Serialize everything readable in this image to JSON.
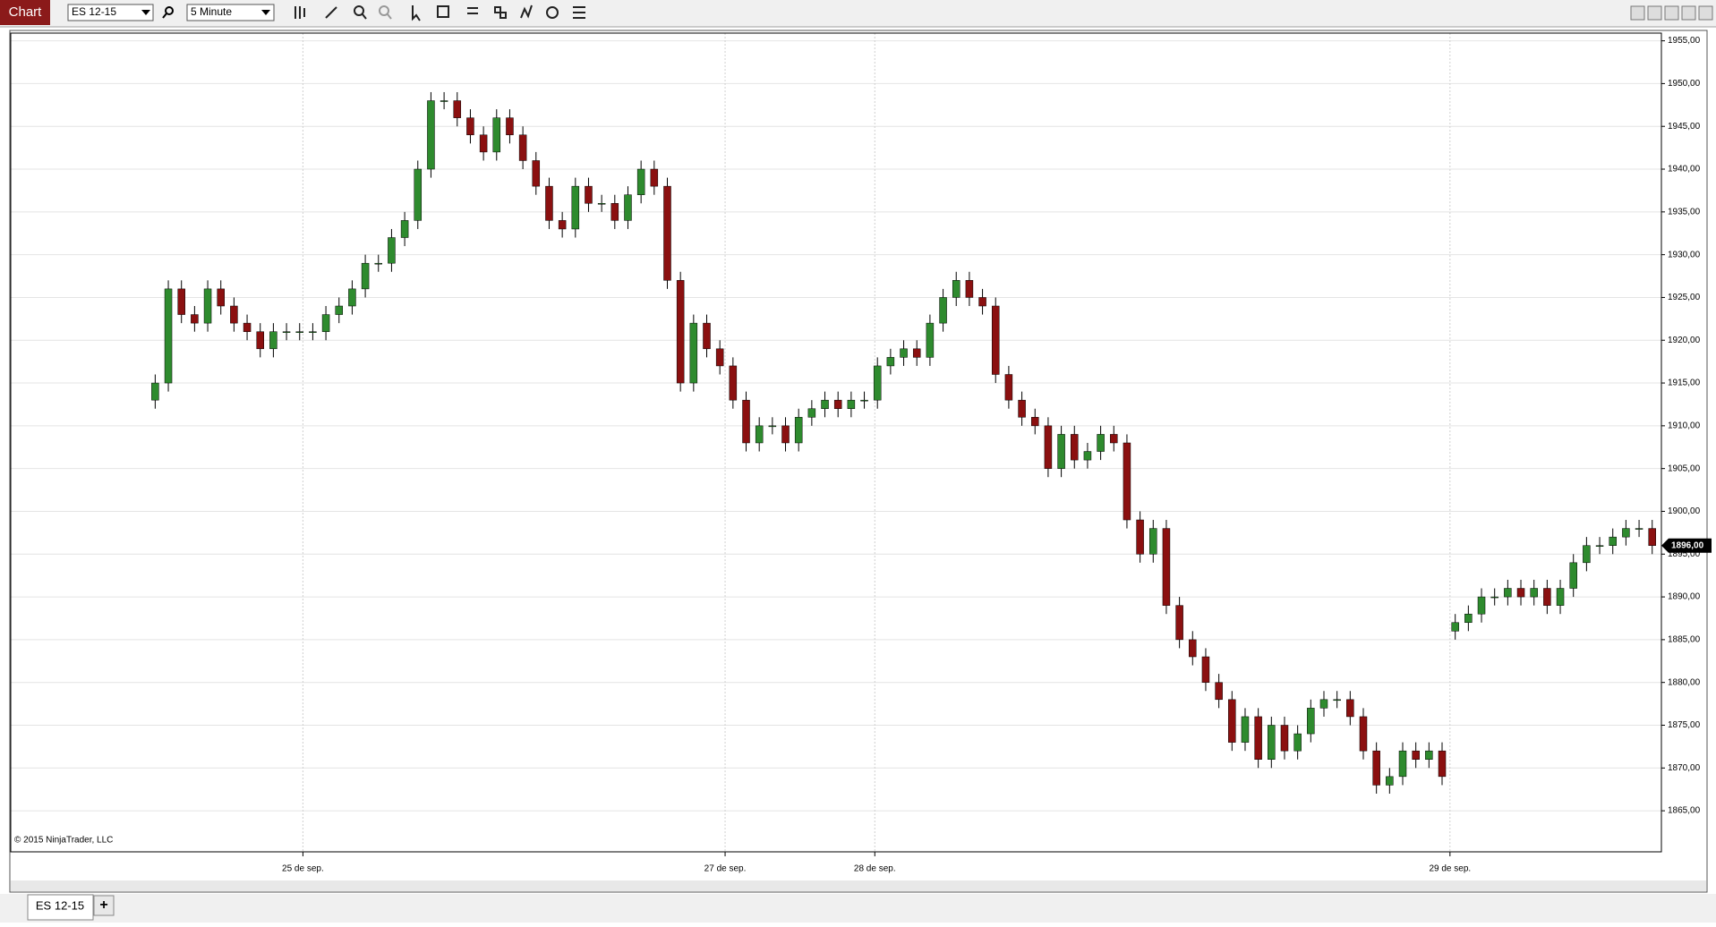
{
  "toolbar": {
    "chart_button": "Chart",
    "instrument": "ES 12-15",
    "interval": "5 Minute"
  },
  "tabs": {
    "active": "ES 12-15",
    "add": "+"
  },
  "chart_data": {
    "type": "candlestick",
    "copyright": "© 2015 NinjaTrader, LLC",
    "up_color": "#2e8b2e",
    "down_color": "#8b1010",
    "wick_color": "#000000",
    "grid": true,
    "open": [
      1913,
      1915,
      1926,
      1923,
      1922,
      1926,
      1924,
      1922,
      1921,
      1919,
      1921,
      1921,
      1921,
      1921,
      1923,
      1924,
      1926,
      1929,
      1929,
      1932,
      1934,
      1940,
      1948,
      1948,
      1946,
      1944,
      1942,
      1946,
      1944,
      1941,
      1938,
      1934,
      1933,
      1938,
      1936,
      1936,
      1934,
      1937,
      1940,
      1938,
      1927,
      1915,
      1922,
      1919,
      1917,
      1913,
      1908,
      1910,
      1910,
      1908,
      1911,
      1912,
      1913,
      1912,
      1913,
      1913,
      1917,
      1918,
      1919,
      1918,
      1922,
      1925,
      1927,
      1925,
      1924,
      1916,
      1913,
      1911,
      1910,
      1905,
      1909,
      1906,
      1907,
      1909,
      1908,
      1899,
      1895,
      1898,
      1889,
      1885,
      1883,
      1880,
      1878,
      1873,
      1876,
      1871,
      1875,
      1872,
      1874,
      1877,
      1878,
      1878,
      1876,
      1872,
      1868,
      1869,
      1872,
      1871,
      1872,
      1886,
      1887,
      1888,
      1890,
      1890,
      1891,
      1890,
      1891,
      1889,
      1891,
      1894,
      1896,
      1896,
      1897,
      1898,
      1898
    ],
    "high": [
      1916,
      1927,
      1927,
      1924,
      1927,
      1927,
      1925,
      1923,
      1922,
      1922,
      1922,
      1922,
      1922,
      1924,
      1925,
      1927,
      1930,
      1930,
      1933,
      1935,
      1941,
      1949,
      1949,
      1949,
      1947,
      1945,
      1947,
      1947,
      1945,
      1942,
      1939,
      1935,
      1939,
      1939,
      1937,
      1937,
      1938,
      1941,
      1941,
      1939,
      1928,
      1923,
      1923,
      1920,
      1918,
      1914,
      1911,
      1911,
      1911,
      1912,
      1913,
      1914,
      1914,
      1914,
      1914,
      1918,
      1919,
      1920,
      1920,
      1923,
      1926,
      1928,
      1928,
      1926,
      1925,
      1917,
      1914,
      1912,
      1911,
      1910,
      1910,
      1908,
      1910,
      1910,
      1909,
      1900,
      1899,
      1899,
      1890,
      1886,
      1884,
      1881,
      1879,
      1877,
      1877,
      1876,
      1876,
      1875,
      1878,
      1879,
      1879,
      1879,
      1877,
      1873,
      1870,
      1873,
      1873,
      1873,
      1873,
      1888,
      1889,
      1891,
      1891,
      1892,
      1892,
      1892,
      1892,
      1892,
      1895,
      1897,
      1897,
      1898,
      1899,
      1899,
      1899
    ],
    "low": [
      1912,
      1914,
      1922,
      1921,
      1921,
      1923,
      1921,
      1920,
      1918,
      1918,
      1920,
      1920,
      1920,
      1920,
      1922,
      1923,
      1925,
      1928,
      1928,
      1931,
      1933,
      1939,
      1947,
      1945,
      1943,
      1941,
      1941,
      1943,
      1940,
      1937,
      1933,
      1932,
      1932,
      1935,
      1935,
      1933,
      1933,
      1936,
      1937,
      1926,
      1914,
      1914,
      1918,
      1916,
      1912,
      1907,
      1907,
      1909,
      1907,
      1907,
      1910,
      1911,
      1911,
      1911,
      1912,
      1912,
      1916,
      1917,
      1917,
      1917,
      1921,
      1924,
      1924,
      1923,
      1915,
      1912,
      1910,
      1909,
      1904,
      1904,
      1905,
      1905,
      1906,
      1907,
      1898,
      1894,
      1894,
      1888,
      1884,
      1882,
      1879,
      1877,
      1872,
      1872,
      1870,
      1870,
      1871,
      1871,
      1873,
      1876,
      1877,
      1875,
      1871,
      1867,
      1867,
      1868,
      1870,
      1870,
      1868,
      1885,
      1886,
      1887,
      1889,
      1889,
      1889,
      1889,
      1888,
      1888,
      1890,
      1893,
      1895,
      1895,
      1896,
      1897,
      1895
    ],
    "close": [
      1915,
      1926,
      1923,
      1922,
      1926,
      1924,
      1922,
      1921,
      1919,
      1921,
      1921,
      1921,
      1921,
      1923,
      1924,
      1926,
      1929,
      1929,
      1932,
      1934,
      1940,
      1948,
      1948,
      1946,
      1944,
      1942,
      1946,
      1944,
      1941,
      1938,
      1934,
      1933,
      1938,
      1936,
      1936,
      1934,
      1937,
      1940,
      1938,
      1927,
      1915,
      1922,
      1919,
      1917,
      1913,
      1908,
      1910,
      1910,
      1908,
      1911,
      1912,
      1913,
      1912,
      1913,
      1913,
      1917,
      1918,
      1919,
      1918,
      1922,
      1925,
      1927,
      1925,
      1924,
      1916,
      1913,
      1911,
      1910,
      1905,
      1909,
      1906,
      1907,
      1909,
      1908,
      1899,
      1895,
      1898,
      1889,
      1885,
      1883,
      1880,
      1878,
      1873,
      1876,
      1871,
      1875,
      1872,
      1874,
      1877,
      1878,
      1878,
      1876,
      1872,
      1868,
      1869,
      1872,
      1871,
      1872,
      1869,
      1887,
      1888,
      1890,
      1890,
      1891,
      1890,
      1891,
      1889,
      1891,
      1894,
      1896,
      1896,
      1897,
      1898,
      1898,
      1896
    ],
    "last_price": {
      "value": 1896,
      "label": "1896,00"
    },
    "ylim": [
      1860.2,
      1955.9
    ],
    "yticks": [
      {
        "value": 1865,
        "label": "1865,00"
      },
      {
        "value": 1870,
        "label": "1870,00"
      },
      {
        "value": 1875,
        "label": "1875,00"
      },
      {
        "value": 1880,
        "label": "1880,00"
      },
      {
        "value": 1885,
        "label": "1885,00"
      },
      {
        "value": 1890,
        "label": "1890,00"
      },
      {
        "value": 1895,
        "label": "1895,00"
      },
      {
        "value": 1900,
        "label": "1900,00"
      },
      {
        "value": 1905,
        "label": "1905,00"
      },
      {
        "value": 1910,
        "label": "1910,00"
      },
      {
        "value": 1915,
        "label": "1915,00"
      },
      {
        "value": 1920,
        "label": "1920,00"
      },
      {
        "value": 1925,
        "label": "1925,00"
      },
      {
        "value": 1930,
        "label": "1930,00"
      },
      {
        "value": 1935,
        "label": "1935,00"
      },
      {
        "value": 1940,
        "label": "1940,00"
      },
      {
        "value": 1945,
        "label": "1945,00"
      },
      {
        "value": 1950,
        "label": "1950,00"
      },
      {
        "value": 1955,
        "label": "1955,00"
      }
    ],
    "xlim": [
      -11,
      114.7
    ],
    "xticks": [
      {
        "value": 11.25,
        "label": "25 de sep."
      },
      {
        "value": 43.4,
        "label": "27 de sep."
      },
      {
        "value": 54.8,
        "label": "28 de sep."
      },
      {
        "value": 98.6,
        "label": "29 de sep."
      }
    ]
  }
}
